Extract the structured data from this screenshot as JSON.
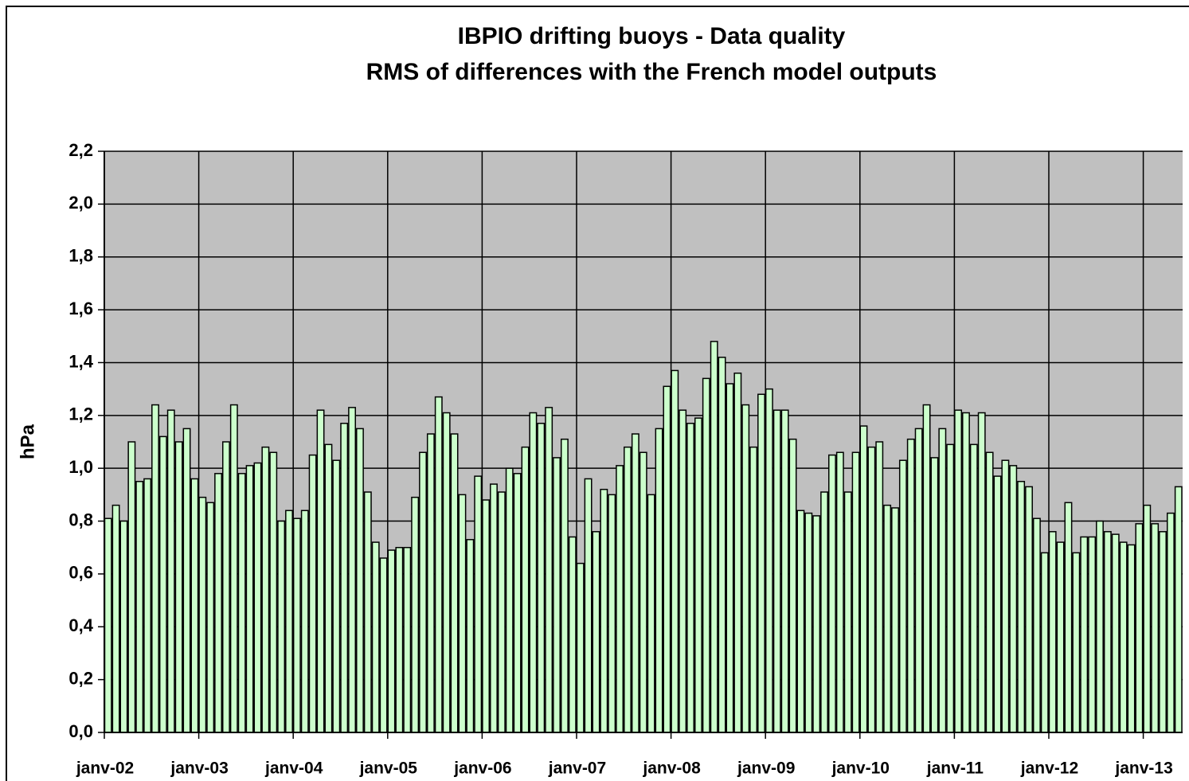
{
  "chart_data": {
    "type": "bar",
    "title": [
      "IBPIO drifting buoys - Data quality",
      "RMS of differences with the French model outputs"
    ],
    "y_label": "hPa",
    "color": "#ccffcc",
    "background": "#c0c0c0",
    "grid": true,
    "categories": [
      "janv-02",
      null,
      null,
      null,
      null,
      null,
      null,
      null,
      null,
      null,
      null,
      null,
      "janv-03",
      null,
      null,
      null,
      null,
      null,
      null,
      null,
      null,
      null,
      null,
      null,
      "janv-04",
      null,
      null,
      null,
      null,
      null,
      null,
      null,
      null,
      null,
      null,
      null,
      "janv-05",
      null,
      null,
      null,
      null,
      null,
      null,
      null,
      null,
      null,
      null,
      null,
      "janv-06",
      null,
      null,
      null,
      null,
      null,
      null,
      null,
      null,
      null,
      null,
      null,
      "janv-07",
      null,
      null,
      null,
      null,
      null,
      null,
      null,
      null,
      null,
      null,
      null,
      "janv-08",
      null,
      null,
      null,
      null,
      null,
      null,
      null,
      null,
      null,
      null,
      null,
      "janv-09",
      null,
      null,
      null,
      null,
      null,
      null,
      null,
      null,
      null,
      null,
      null,
      "janv-10",
      null,
      null,
      null,
      null,
      null,
      null,
      null,
      null,
      null,
      null,
      null,
      "janv-11",
      null,
      null,
      null,
      null,
      null,
      null,
      null,
      null,
      null,
      null,
      null,
      "janv-12",
      null,
      null,
      null,
      null,
      null,
      null,
      null,
      null,
      null,
      null,
      null,
      "janv-13",
      null,
      null,
      null,
      null
    ],
    "values": [
      0.81,
      0.86,
      0.8,
      1.1,
      0.95,
      0.96,
      1.24,
      1.12,
      1.22,
      1.1,
      1.15,
      0.96,
      0.89,
      0.87,
      0.98,
      1.1,
      1.24,
      0.98,
      1.01,
      1.02,
      1.08,
      1.06,
      0.8,
      0.84,
      0.81,
      0.84,
      1.05,
      1.22,
      1.09,
      1.03,
      1.17,
      1.23,
      1.15,
      0.91,
      0.72,
      0.66,
      0.69,
      0.7,
      0.7,
      0.89,
      1.06,
      1.13,
      1.27,
      1.21,
      1.13,
      0.9,
      0.73,
      0.97,
      0.88,
      0.94,
      0.91,
      1.0,
      0.98,
      1.08,
      1.21,
      1.17,
      1.23,
      1.04,
      1.11,
      0.74,
      0.64,
      0.96,
      0.76,
      0.92,
      0.9,
      1.01,
      1.08,
      1.13,
      1.06,
      0.9,
      1.15,
      1.31,
      1.37,
      1.22,
      1.17,
      1.19,
      1.34,
      1.48,
      1.42,
      1.32,
      1.36,
      1.24,
      1.08,
      1.28,
      1.3,
      1.22,
      1.22,
      1.11,
      0.84,
      0.83,
      0.82,
      0.91,
      1.05,
      1.06,
      0.91,
      1.06,
      1.16,
      1.08,
      1.1,
      0.86,
      0.85,
      1.03,
      1.11,
      1.15,
      1.24,
      1.04,
      1.15,
      1.09,
      1.22,
      1.21,
      1.09,
      1.21,
      1.06,
      0.97,
      1.03,
      1.01,
      0.95,
      0.93,
      0.81,
      0.68,
      0.76,
      0.72,
      0.87,
      0.68,
      0.74,
      0.74,
      0.8,
      0.76,
      0.75,
      0.72,
      0.71,
      0.79,
      0.86,
      0.79,
      0.76,
      0.83,
      0.93
    ],
    "ylim": [
      0,
      2.2
    ],
    "yticks": [
      {
        "value": 0,
        "label": "0,0"
      },
      {
        "value": 0.2,
        "label": "0,2"
      },
      {
        "value": 0.4,
        "label": "0,4"
      },
      {
        "value": 0.6,
        "label": "0,6"
      },
      {
        "value": 0.8,
        "label": "0,8"
      },
      {
        "value": 1.0,
        "label": "1,0"
      },
      {
        "value": 1.2,
        "label": "1,2"
      },
      {
        "value": 1.4,
        "label": "1,4"
      },
      {
        "value": 1.6,
        "label": "1,6"
      },
      {
        "value": 1.8,
        "label": "1,8"
      },
      {
        "value": 2.0,
        "label": "2,0"
      },
      {
        "value": 2.2,
        "label": "2,2"
      }
    ]
  }
}
